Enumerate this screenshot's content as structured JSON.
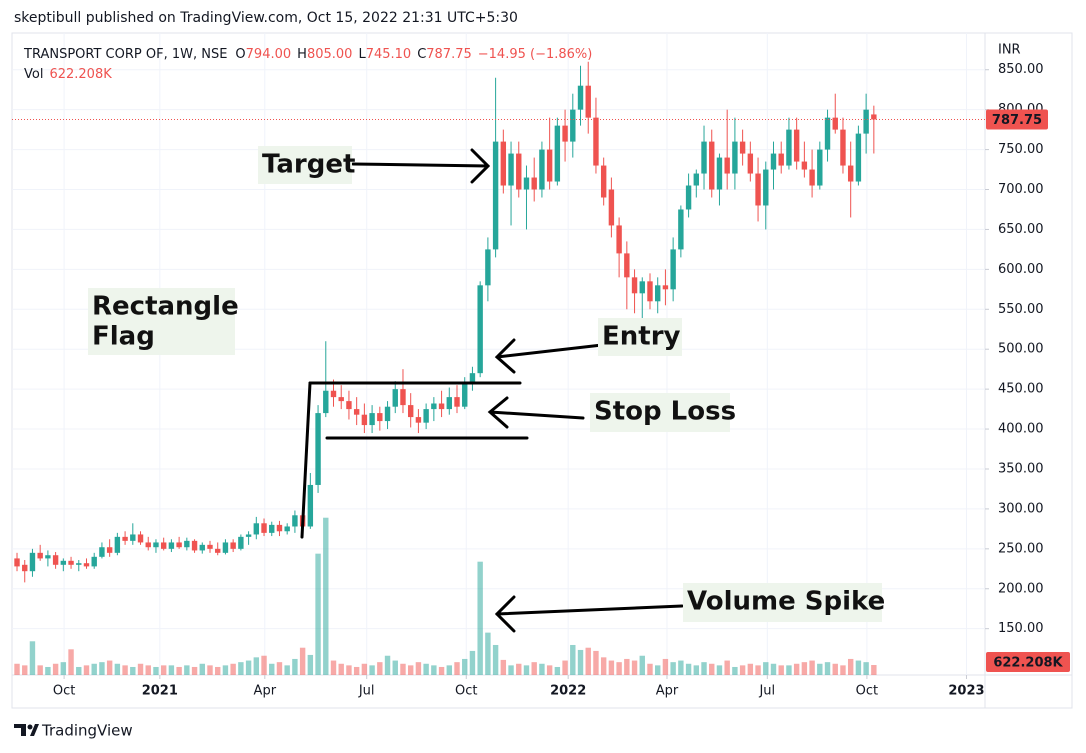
{
  "page": {
    "published": "skeptibull published on TradingView.com, Oct 15, 2022 21:31 UTC+5:30",
    "brand": "TradingView"
  },
  "chart_data": {
    "type": "candlestick",
    "currency": "INR",
    "legend": {
      "symbol": "TRANSPORT CORP OF, 1W, NSE",
      "ohlc": [
        {
          "key": "O",
          "value": "794.00"
        },
        {
          "key": "H",
          "value": "805.00"
        },
        {
          "key": "L",
          "value": "745.10"
        },
        {
          "key": "C",
          "value": "787.75"
        }
      ],
      "change": "−14.95 (−1.86%)",
      "volume_key": "Vol",
      "volume": "622.208K"
    },
    "up_color": "#26a69a",
    "down_color": "#ef5350",
    "open": [
      238,
      230,
      222,
      245,
      238,
      242,
      230,
      235,
      230,
      232,
      228,
      240,
      252,
      245,
      265,
      260,
      268,
      258,
      252,
      258,
      250,
      258,
      252,
      260,
      248,
      255,
      250,
      245,
      258,
      250,
      265,
      268,
      282,
      270,
      280,
      272,
      278,
      292,
      278,
      330,
      420,
      448,
      440,
      435,
      425,
      418,
      405,
      420,
      410,
      428,
      450,
      430,
      415,
      408,
      425,
      432,
      425,
      440,
      428,
      458,
      470,
      580,
      625,
      760,
      705,
      745,
      700,
      715,
      700,
      750,
      710,
      780,
      760,
      800,
      830,
      790,
      730,
      700,
      655,
      620,
      590,
      570,
      585,
      560,
      580,
      575,
      625,
      675,
      705,
      720,
      760,
      700,
      740,
      720,
      760,
      745,
      720,
      680,
      725,
      745,
      730,
      775,
      735,
      725,
      705,
      750,
      790,
      775,
      730,
      710,
      770,
      794
    ],
    "high": [
      245,
      236,
      250,
      255,
      248,
      246,
      238,
      240,
      236,
      238,
      245,
      258,
      262,
      270,
      272,
      282,
      272,
      265,
      262,
      264,
      262,
      265,
      264,
      262,
      258,
      260,
      258,
      262,
      262,
      268,
      272,
      290,
      288,
      284,
      285,
      282,
      298,
      300,
      345,
      430,
      510,
      462,
      455,
      448,
      440,
      432,
      430,
      428,
      435,
      460,
      475,
      445,
      425,
      432,
      440,
      448,
      452,
      455,
      465,
      478,
      585,
      640,
      840,
      775,
      760,
      760,
      730,
      740,
      760,
      790,
      790,
      800,
      820,
      855,
      860,
      815,
      740,
      715,
      665,
      635,
      600,
      590,
      595,
      590,
      600,
      640,
      680,
      720,
      725,
      780,
      775,
      745,
      800,
      790,
      775,
      760,
      740,
      735,
      760,
      760,
      790,
      790,
      760,
      750,
      760,
      800,
      820,
      790,
      760,
      780,
      820,
      805
    ],
    "low": [
      222,
      208,
      215,
      235,
      228,
      225,
      222,
      225,
      222,
      225,
      225,
      238,
      240,
      242,
      255,
      255,
      255,
      248,
      245,
      248,
      246,
      250,
      248,
      245,
      244,
      245,
      242,
      243,
      246,
      248,
      255,
      262,
      266,
      266,
      266,
      268,
      270,
      270,
      275,
      320,
      415,
      428,
      425,
      412,
      405,
      395,
      395,
      398,
      400,
      420,
      420,
      402,
      395,
      400,
      410,
      415,
      418,
      420,
      425,
      448,
      465,
      560,
      615,
      695,
      655,
      690,
      650,
      685,
      690,
      700,
      705,
      735,
      740,
      780,
      770,
      720,
      680,
      640,
      590,
      550,
      545,
      530,
      550,
      545,
      555,
      560,
      615,
      665,
      690,
      700,
      690,
      680,
      700,
      700,
      730,
      710,
      660,
      650,
      700,
      720,
      725,
      725,
      715,
      690,
      700,
      735,
      770,
      720,
      665,
      705,
      745,
      745.1
    ],
    "close": [
      228,
      222,
      245,
      238,
      242,
      230,
      235,
      230,
      232,
      228,
      240,
      252,
      245,
      265,
      260,
      268,
      258,
      252,
      258,
      250,
      258,
      252,
      260,
      248,
      255,
      250,
      245,
      258,
      250,
      265,
      268,
      282,
      270,
      280,
      272,
      278,
      292,
      278,
      330,
      420,
      448,
      440,
      435,
      425,
      418,
      405,
      420,
      410,
      428,
      450,
      430,
      415,
      408,
      425,
      432,
      425,
      440,
      428,
      458,
      470,
      580,
      625,
      760,
      705,
      745,
      700,
      715,
      700,
      750,
      710,
      780,
      760,
      800,
      830,
      790,
      730,
      690,
      655,
      620,
      590,
      570,
      585,
      560,
      580,
      575,
      625,
      675,
      705,
      720,
      760,
      700,
      740,
      720,
      760,
      745,
      720,
      680,
      725,
      745,
      730,
      775,
      735,
      725,
      705,
      750,
      790,
      775,
      730,
      710,
      770,
      800,
      787.75
    ],
    "volume": [
      700,
      600,
      2100,
      600,
      500,
      700,
      800,
      1600,
      500,
      600,
      700,
      800,
      900,
      700,
      600,
      500,
      700,
      600,
      500,
      600,
      600,
      500,
      600,
      500,
      700,
      600,
      500,
      600,
      700,
      800,
      900,
      1100,
      1200,
      700,
      800,
      600,
      1000,
      1700,
      1250,
      7560,
      9800,
      900,
      700,
      600,
      500,
      700,
      600,
      800,
      1200,
      900,
      700,
      600,
      800,
      700,
      600,
      500,
      600,
      800,
      1000,
      1500,
      7060,
      2640,
      1870,
      940,
      600,
      700,
      600,
      800,
      700,
      600,
      500,
      900,
      1870,
      1560,
      1700,
      1500,
      1100,
      900,
      800,
      1000,
      900,
      1200,
      700,
      600,
      1000,
      800,
      900,
      700,
      600,
      800,
      700,
      600,
      900,
      500,
      600,
      700,
      600,
      800,
      700,
      600,
      600,
      700,
      800,
      900,
      700,
      800,
      700,
      600,
      1000,
      900,
      800,
      622.208
    ],
    "xlim": [
      -0.65,
      125.4
    ],
    "xticks": [
      {
        "value": 6.1,
        "label": "Oct"
      },
      {
        "value": 18.5,
        "label": "2021"
      },
      {
        "value": 32.1,
        "label": "Apr"
      },
      {
        "value": 45.3,
        "label": "Jul"
      },
      {
        "value": 58.2,
        "label": "Oct"
      },
      {
        "value": 71.4,
        "label": "2022"
      },
      {
        "value": 84.2,
        "label": "Apr"
      },
      {
        "value": 97.2,
        "label": "Jul"
      },
      {
        "value": 110.1,
        "label": "Oct"
      },
      {
        "value": 123,
        "label": "2023"
      }
    ],
    "ylim": [
      92,
      896
    ],
    "yticks": [
      {
        "value": 150,
        "label": "150.00"
      },
      {
        "value": 200,
        "label": "200.00"
      },
      {
        "value": 250,
        "label": "250.00"
      },
      {
        "value": 300,
        "label": "300.00"
      },
      {
        "value": 350,
        "label": "350.00"
      },
      {
        "value": 400,
        "label": "400.00"
      },
      {
        "value": 450,
        "label": "450.00"
      },
      {
        "value": 500,
        "label": "500.00"
      },
      {
        "value": 550,
        "label": "550.00"
      },
      {
        "value": 600,
        "label": "600.00"
      },
      {
        "value": 650,
        "label": "650.00"
      },
      {
        "value": 700,
        "label": "700.00"
      },
      {
        "value": 750,
        "label": "750.00"
      },
      {
        "value": 800,
        "label": "800.00"
      },
      {
        "value": 850,
        "label": "850.00"
      }
    ],
    "vlim": [
      0,
      40000
    ],
    "grid": true,
    "annotations": [
      {
        "lines": [
          "Target"
        ]
      },
      {
        "lines": [
          "Rectangle",
          "Flag"
        ]
      },
      {
        "lines": [
          "Entry"
        ]
      },
      {
        "lines": [
          "Stop Loss"
        ]
      },
      {
        "lines": [
          "Volume Spike"
        ]
      }
    ]
  }
}
